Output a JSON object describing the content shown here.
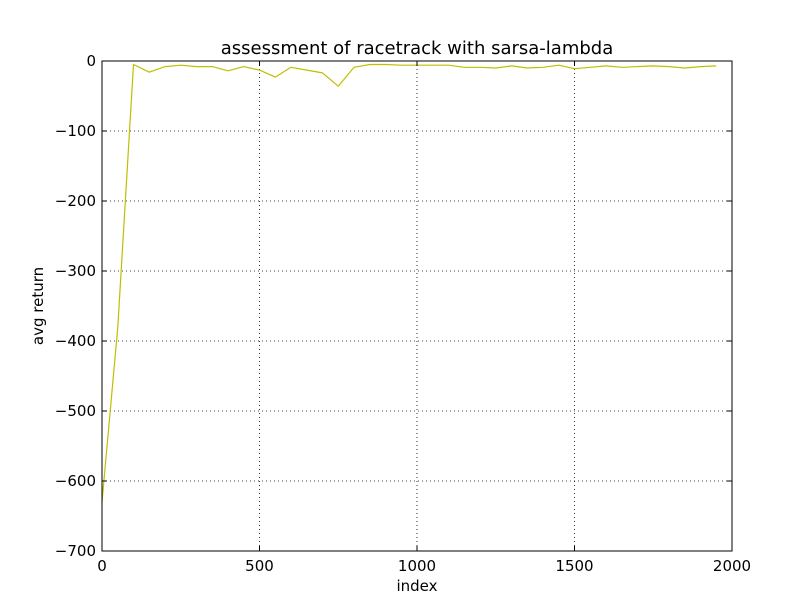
{
  "chart_data": {
    "type": "line",
    "title": "assessment of racetrack with sarsa-lambda",
    "xlabel": "index",
    "ylabel": "avg return",
    "xlim": [
      0,
      2000
    ],
    "ylim": [
      -700,
      0
    ],
    "xticks": [
      0,
      500,
      1000,
      1500,
      2000
    ],
    "yticks": [
      0,
      -100,
      -200,
      -300,
      -400,
      -500,
      -600,
      -700
    ],
    "xtick_labels": [
      "0",
      "500",
      "1000",
      "1500",
      "2000"
    ],
    "ytick_labels": [
      "0",
      "−100",
      "−200",
      "−300",
      "−400",
      "−500",
      "−600",
      "−700"
    ],
    "grid": true,
    "series": [
      {
        "color": "#bfbf00",
        "x": [
          0,
          50,
          100,
          150,
          200,
          250,
          300,
          350,
          400,
          450,
          500,
          550,
          600,
          650,
          700,
          750,
          800,
          850,
          900,
          950,
          1000,
          1050,
          1100,
          1150,
          1200,
          1250,
          1300,
          1350,
          1400,
          1450,
          1500,
          1550,
          1600,
          1650,
          1700,
          1750,
          1800,
          1850,
          1900,
          1950
        ],
        "y": [
          -630,
          -380,
          -5,
          -16,
          -8,
          -6,
          -8,
          -8,
          -14,
          -8,
          -13,
          -23,
          -9,
          -13,
          -17,
          -36,
          -9,
          -5,
          -5,
          -6,
          -6,
          -6,
          -6,
          -9,
          -9,
          -10,
          -7,
          -10,
          -9,
          -6,
          -11,
          -9,
          -7,
          -9,
          -8,
          -7,
          -8,
          -10,
          -8,
          -7
        ]
      }
    ]
  }
}
